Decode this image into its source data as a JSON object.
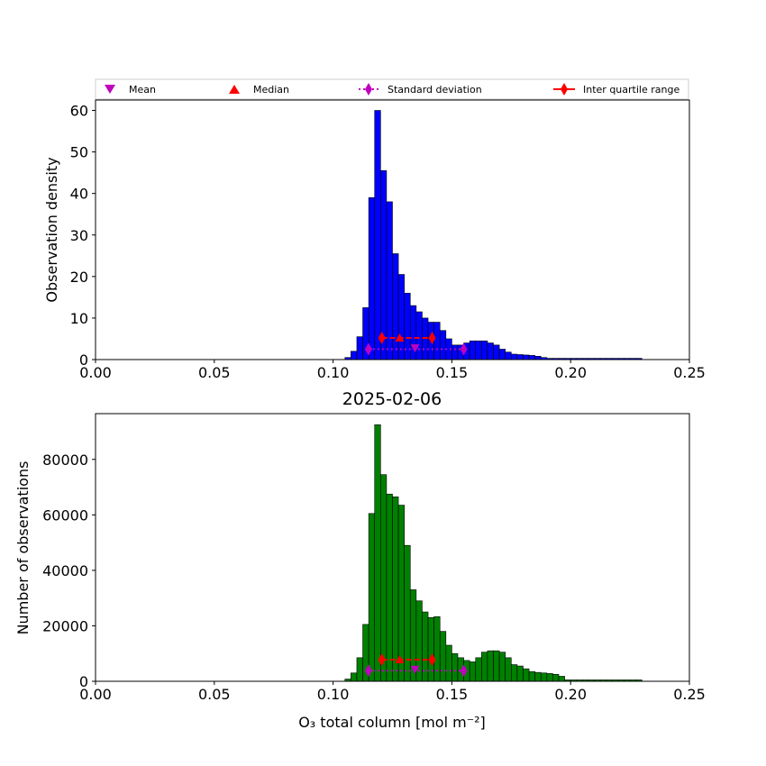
{
  "title": "2025-02-06",
  "legend": {
    "placement": "top",
    "entries": [
      {
        "label": "Mean",
        "marker": "triangle-down",
        "color": "#bf00bf"
      },
      {
        "label": "Median",
        "marker": "triangle-up",
        "color": "#ff0000"
      },
      {
        "label": "Standard deviation",
        "marker": "thin-diamond",
        "color": "#bf00bf",
        "line": "dotted"
      },
      {
        "label": "Inter quartile range",
        "marker": "thin-diamond",
        "color": "#ff0000",
        "line": "solid"
      }
    ]
  },
  "chart_data": [
    {
      "type": "bar",
      "name": "density-histogram",
      "bar_color": "#0000ff",
      "edge_color": "#000000",
      "xlabel": "",
      "ylabel": "Observation density",
      "xlim": [
        0.0,
        0.25
      ],
      "ylim": [
        0,
        62.5
      ],
      "xticks": [
        0.0,
        0.05,
        0.1,
        0.15,
        0.2,
        0.25
      ],
      "xtick_labels": [
        "0.00",
        "0.05",
        "0.10",
        "0.15",
        "0.20",
        "0.25"
      ],
      "yticks": [
        0,
        10,
        20,
        30,
        40,
        50,
        60
      ],
      "ytick_labels": [
        "0",
        "10",
        "20",
        "30",
        "40",
        "50",
        "60"
      ],
      "bin_start": 0.105,
      "bin_width": 0.0025,
      "values": [
        0.5,
        2,
        5.5,
        12.5,
        39,
        60,
        45.5,
        38,
        25.5,
        20.5,
        16,
        13,
        11.5,
        10,
        9,
        9,
        7,
        5,
        3.5,
        3.5,
        4,
        4.5,
        4.5,
        4.5,
        4,
        3.5,
        2.5,
        1.8,
        1.3,
        1.2,
        1.1,
        1.0,
        0.8,
        0.5,
        0.3,
        0.3,
        0.3,
        0.3,
        0.3,
        0.3,
        0.3,
        0.3,
        0.3,
        0.3,
        0.3,
        0.3,
        0.3,
        0.3,
        0.3,
        0.3
      ],
      "stats": {
        "mean": 0.1345,
        "median": 0.128,
        "iqr": [
          0.1205,
          0.1417
        ],
        "std_range": [
          0.1149,
          0.155
        ],
        "mean_y": 2.8,
        "median_y": 5.2,
        "iqr_y": 5.2,
        "std_y": 2.5
      }
    },
    {
      "type": "bar",
      "name": "count-histogram",
      "bar_color": "#008000",
      "edge_color": "#000000",
      "xlabel": "O₃ total column [mol m⁻²]",
      "ylabel": "Number of observations",
      "xlim": [
        0.0,
        0.25
      ],
      "ylim": [
        0,
        96500
      ],
      "xticks": [
        0.0,
        0.05,
        0.1,
        0.15,
        0.2,
        0.25
      ],
      "xtick_labels": [
        "0.00",
        "0.05",
        "0.10",
        "0.15",
        "0.20",
        "0.25"
      ],
      "yticks": [
        0,
        20000,
        40000,
        60000,
        80000
      ],
      "ytick_labels": [
        "0",
        "20000",
        "40000",
        "60000",
        "80000"
      ],
      "bin_start": 0.105,
      "bin_width": 0.0025,
      "values": [
        800,
        3000,
        8500,
        20500,
        60500,
        92500,
        74500,
        67500,
        66500,
        63500,
        49000,
        33000,
        29000,
        25000,
        23000,
        23300,
        18000,
        13000,
        10000,
        8500,
        7500,
        7000,
        8500,
        10500,
        11000,
        11000,
        10500,
        8500,
        6000,
        5500,
        4500,
        3500,
        3200,
        3000,
        2800,
        2500,
        1800,
        500,
        500,
        500,
        500,
        500,
        500,
        500,
        500,
        500,
        500,
        500,
        500,
        500
      ],
      "stats": {
        "mean": 0.1345,
        "median": 0.128,
        "iqr": [
          0.1205,
          0.1417
        ],
        "std_range": [
          0.1149,
          0.155
        ],
        "mean_y": 4300,
        "median_y": 7800,
        "iqr_y": 7800,
        "std_y": 3800
      }
    }
  ]
}
